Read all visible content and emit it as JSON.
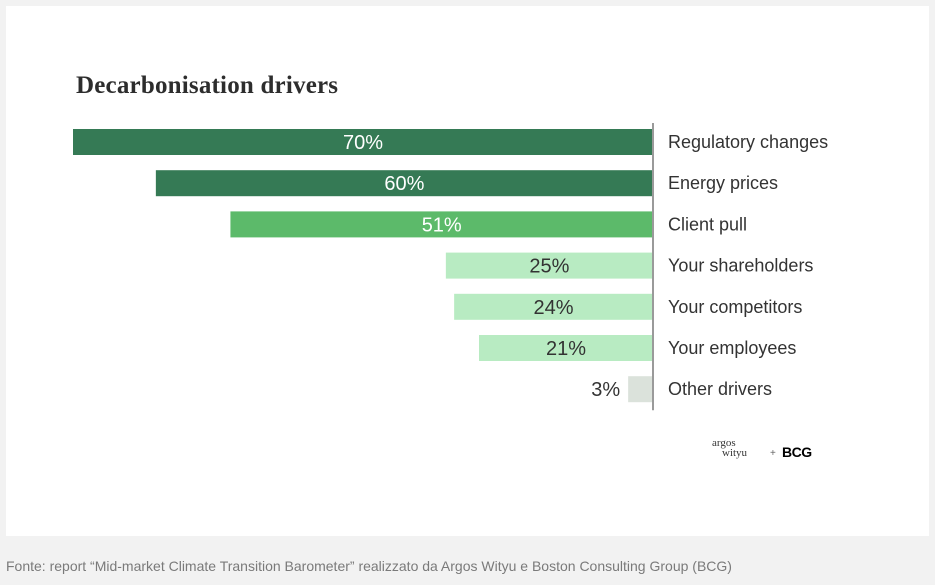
{
  "chart_data": {
    "type": "bar",
    "title": "Decarbonisation drivers",
    "orientation": "horizontal",
    "categories": [
      "Regulatory changes",
      "Energy prices",
      "Client pull",
      "Your shareholders",
      "Your competitors",
      "Your employees",
      "Other drivers"
    ],
    "values": [
      70,
      60,
      51,
      25,
      24,
      21,
      3
    ],
    "value_labels": [
      "70%",
      "60%",
      "51%",
      "25%",
      "24%",
      "21%",
      "3%"
    ],
    "unit": "%",
    "colors": [
      "#357a55",
      "#357a55",
      "#5cba6a",
      "#b8ebc2",
      "#b8ebc2",
      "#b8ebc2",
      "#dbe2db"
    ],
    "label_colors": [
      "#ffffff",
      "#ffffff",
      "#ffffff",
      "#333333",
      "#333333",
      "#333333",
      "#333333"
    ],
    "xlim": [
      0,
      70
    ],
    "legend": "none",
    "grid": false
  },
  "logos": {
    "argos_line1": "argos",
    "argos_line2": "wityu",
    "plus": "+",
    "bcg": "BCG"
  },
  "source": "Fonte: report “Mid-market Climate Transition Barometer” realizzato da Argos Wityu e Boston Consulting Group (BCG)"
}
